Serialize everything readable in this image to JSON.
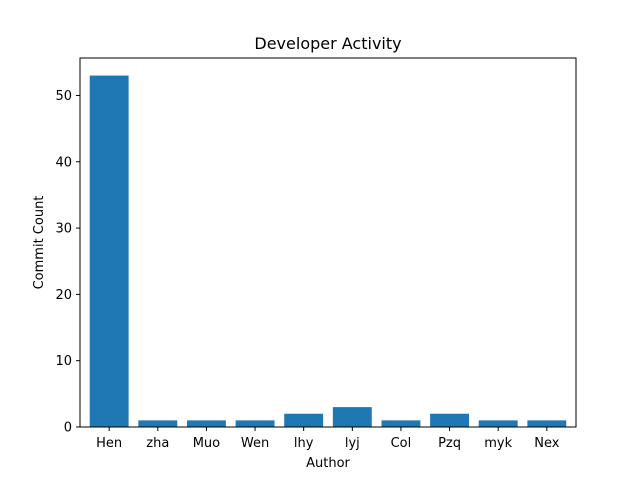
{
  "chart_data": {
    "type": "bar",
    "title": "Developer Activity",
    "xlabel": "Author",
    "ylabel": "Commit Count",
    "categories": [
      "Hen",
      "zha",
      "Muo",
      "Wen",
      "lhy",
      "lyj",
      "Col",
      "Pzq",
      "myk",
      "Nex"
    ],
    "values": [
      53,
      1,
      1,
      1,
      2,
      3,
      1,
      2,
      1,
      1
    ],
    "ylim": [
      0,
      55.65
    ],
    "yticks": [
      0,
      10,
      20,
      30,
      40,
      50
    ],
    "bar_color": "#1f77b4",
    "grid": false,
    "legend": false
  }
}
